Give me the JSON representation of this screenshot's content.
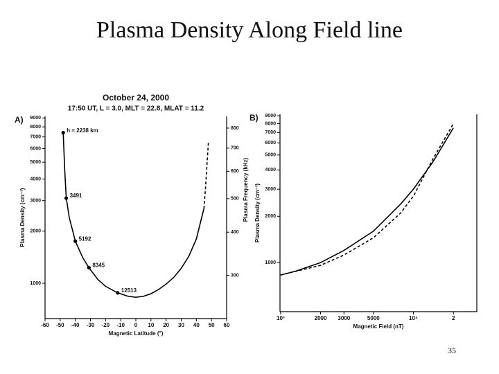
{
  "title": "Plasma Density Along Field line",
  "page_number": "35",
  "chart_data": [
    {
      "type": "line",
      "panel_label": "A)",
      "title": "October 24, 2000",
      "subtitle": "17:50 UT, L = 3.0, MLT = 22.8, MLAT = 11.2",
      "x_label": "Magnetic Latitude (°)",
      "y_label": "Plasma Density (cm⁻³)",
      "y2_label": "Plasma Frequency (kHz)",
      "xlim": [
        -60,
        60
      ],
      "xticks": [
        -60,
        -50,
        -40,
        -30,
        -20,
        -10,
        0,
        10,
        20,
        30,
        40,
        50,
        60
      ],
      "ylim": [
        625,
        9200
      ],
      "yticks": [
        1000,
        2000,
        3000,
        4000,
        5000,
        6000,
        7000,
        8000,
        9000
      ],
      "y_log": true,
      "y2lim": [
        225,
        865
      ],
      "y2ticks": [
        300,
        400,
        500,
        600,
        700,
        800
      ],
      "y2_log": true,
      "series": [
        {
          "color": "#000000",
          "line_style": "solid",
          "x": [
            -48,
            -47,
            -46,
            -44,
            -40,
            -35,
            -31,
            -25,
            -20,
            -12,
            -5,
            0,
            5,
            10,
            15,
            20,
            25,
            30,
            35,
            40,
            43,
            45
          ],
          "values": [
            7400,
            4500,
            3100,
            2400,
            1750,
            1400,
            1230,
            1050,
            960,
            880,
            840,
            830,
            840,
            870,
            920,
            990,
            1080,
            1220,
            1430,
            1800,
            2300,
            2700
          ]
        },
        {
          "color": "#000000",
          "line_style": "dashed",
          "x": [
            45,
            46,
            47,
            48
          ],
          "values": [
            2700,
            3500,
            4800,
            6600
          ]
        }
      ],
      "markers": {
        "color": "#000000",
        "x": [
          -48,
          -46,
          -40,
          -31,
          -12
        ],
        "values": [
          7400,
          3100,
          1750,
          1230,
          880
        ],
        "labels": [
          "h = 2238 km",
          "3491",
          "5192",
          "8345",
          "12513"
        ]
      }
    },
    {
      "type": "line",
      "panel_label": "B)",
      "x_label": "Magnetic Field (nT)",
      "y_label": "Plasma Density (cm⁻³)",
      "xlim": [
        990,
        30000
      ],
      "xticks": [
        {
          "value": 1000,
          "label": "10³"
        },
        2000,
        3000,
        5000,
        {
          "value": 10000,
          "label": "10⁴"
        },
        {
          "value": 20000,
          "label": "2"
        }
      ],
      "x_log": true,
      "ylim": [
        480,
        9200
      ],
      "yticks": [
        1000,
        2000,
        3000,
        4000,
        5000,
        6000,
        7000,
        8000,
        9000
      ],
      "y_log": true,
      "series": [
        {
          "color": "#000000",
          "line_style": "solid",
          "x": [
            1000,
            1300,
            2000,
            3000,
            5000,
            8000,
            10000,
            14000,
            20000
          ],
          "values": [
            830,
            880,
            1000,
            1200,
            1600,
            2400,
            3000,
            4500,
            7500
          ]
        },
        {
          "color": "#000000",
          "line_style": "dashed",
          "x": [
            1000,
            2000,
            3000,
            5000,
            8000,
            10000,
            14000,
            20000
          ],
          "values": [
            830,
            960,
            1120,
            1450,
            2100,
            2700,
            4700,
            8000
          ]
        }
      ]
    }
  ]
}
